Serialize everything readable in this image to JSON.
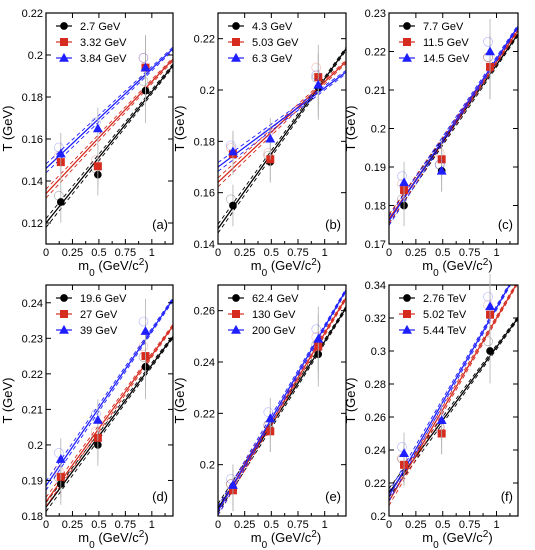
{
  "figure": {
    "xlabel": "m",
    "xlabel_sub": "0",
    "xlabel_unit": "(GeV/c",
    "xlabel_sup": "2",
    "xlabel_close": ")",
    "ylabel": "T (GeV)"
  },
  "colors": {
    "black": "#000000",
    "red": "#d62b1f",
    "blue": "#1f1fff",
    "error": "#b0b0b0"
  },
  "chart_data": [
    {
      "type": "scatter",
      "panel_label": "(a)",
      "xlim": [
        0,
        1.2
      ],
      "ylim": [
        0.11,
        0.22
      ],
      "xticks": [
        "0",
        "0.25",
        "0.5",
        "0.75",
        "1"
      ],
      "yticks": [
        "0.12",
        "0.14",
        "0.16",
        "0.18",
        "0.2",
        "0.22"
      ],
      "yvals": [
        0.12,
        0.14,
        0.16,
        0.18,
        0.2,
        0.22
      ],
      "legend_position": "top-left",
      "series": [
        {
          "name": "2.7 GeV",
          "marker": "circle",
          "color": "#000000",
          "x": [
            0.14,
            0.49,
            0.94
          ],
          "y": [
            0.13,
            0.143,
            0.183
          ],
          "line": [
            0.12,
            0.195
          ]
        },
        {
          "name": "3.32 GeV",
          "marker": "square",
          "color": "#d62b1f",
          "x": [
            0.14,
            0.49,
            0.94
          ],
          "y": [
            0.149,
            0.147,
            0.194
          ],
          "line": [
            0.134,
            0.198
          ]
        },
        {
          "name": "3.84 GeV",
          "marker": "triangle",
          "color": "#1f1fff",
          "x": [
            0.14,
            0.49,
            0.94
          ],
          "y": [
            0.153,
            0.165,
            0.194
          ],
          "line": [
            0.146,
            0.203
          ]
        }
      ]
    },
    {
      "type": "scatter",
      "panel_label": "(b)",
      "xlim": [
        0,
        1.2
      ],
      "ylim": [
        0.14,
        0.23
      ],
      "xticks": [
        "0",
        "0.25",
        "0.5",
        "0.75",
        "1"
      ],
      "yticks": [
        "0.14",
        "0.16",
        "0.18",
        "0.2",
        "0.22"
      ],
      "yvals": [
        0.14,
        0.16,
        0.18,
        0.2,
        0.22
      ],
      "legend_position": "top-left",
      "series": [
        {
          "name": "4.3 GeV",
          "marker": "circle",
          "color": "#000000",
          "x": [
            0.14,
            0.49,
            0.94
          ],
          "y": [
            0.155,
            0.172,
            0.201
          ],
          "line": [
            0.146,
            0.216
          ]
        },
        {
          "name": "5.03 GeV",
          "marker": "square",
          "color": "#d62b1f",
          "x": [
            0.14,
            0.49,
            0.94
          ],
          "y": [
            0.175,
            0.173,
            0.205
          ],
          "line": [
            0.164,
            0.211
          ]
        },
        {
          "name": "6.3 GeV",
          "marker": "triangle",
          "color": "#1f1fff",
          "x": [
            0.14,
            0.49,
            0.94
          ],
          "y": [
            0.176,
            0.181,
            0.202
          ],
          "line": [
            0.17,
            0.207
          ]
        }
      ]
    },
    {
      "type": "scatter",
      "panel_label": "(c)",
      "xlim": [
        0,
        1.2
      ],
      "ylim": [
        0.17,
        0.23
      ],
      "xticks": [
        "0",
        "0.25",
        "0.5",
        "0.75",
        "1"
      ],
      "yticks": [
        "0.17",
        "0.18",
        "0.19",
        "0.2",
        "0.21",
        "0.22",
        "0.23"
      ],
      "yvals": [
        0.17,
        0.18,
        0.19,
        0.2,
        0.21,
        0.22,
        0.23
      ],
      "legend_position": "top-left",
      "series": [
        {
          "name": "7.7 GeV",
          "marker": "circle",
          "color": "#000000",
          "x": [
            0.14,
            0.49,
            0.94
          ],
          "y": [
            0.18,
            0.189,
            0.216
          ],
          "line": [
            0.1765,
            0.2245
          ]
        },
        {
          "name": "11.5 GeV",
          "marker": "square",
          "color": "#d62b1f",
          "x": [
            0.14,
            0.49,
            0.94
          ],
          "y": [
            0.184,
            0.192,
            0.216
          ],
          "line": [
            0.1765,
            0.2255
          ]
        },
        {
          "name": "14.5 GeV",
          "marker": "triangle",
          "color": "#1f1fff",
          "x": [
            0.14,
            0.49,
            0.94
          ],
          "y": [
            0.186,
            0.189,
            0.22
          ],
          "line": [
            0.176,
            0.2265
          ]
        }
      ]
    },
    {
      "type": "scatter",
      "panel_label": "(d)",
      "xlim": [
        0,
        1.2
      ],
      "ylim": [
        0.18,
        0.245
      ],
      "xticks": [
        "0",
        "0.25",
        "0.5",
        "0.75",
        "1"
      ],
      "yticks": [
        "0.18",
        "0.19",
        "0.2",
        "0.21",
        "0.22",
        "0.23",
        "0.24"
      ],
      "yvals": [
        0.18,
        0.19,
        0.2,
        0.21,
        0.22,
        0.23,
        0.24
      ],
      "legend_position": "top-left",
      "series": [
        {
          "name": "19.6 GeV",
          "marker": "circle",
          "color": "#000000",
          "x": [
            0.14,
            0.49,
            0.94
          ],
          "y": [
            0.189,
            0.2,
            0.222
          ],
          "line": [
            0.1825,
            0.2305
          ]
        },
        {
          "name": "27 GeV",
          "marker": "square",
          "color": "#d62b1f",
          "x": [
            0.14,
            0.49,
            0.94
          ],
          "y": [
            0.191,
            0.202,
            0.225
          ],
          "line": [
            0.184,
            0.2335
          ]
        },
        {
          "name": "39 GeV",
          "marker": "triangle",
          "color": "#1f1fff",
          "x": [
            0.14,
            0.49,
            0.94
          ],
          "y": [
            0.196,
            0.207,
            0.232
          ],
          "line": [
            0.1885,
            0.241
          ]
        }
      ]
    },
    {
      "type": "scatter",
      "panel_label": "(e)",
      "xlim": [
        0,
        1.2
      ],
      "ylim": [
        0.18,
        0.27
      ],
      "xticks": [
        "0",
        "0.25",
        "0.5",
        "0.75",
        "1"
      ],
      "yticks": [
        "0.2",
        "0.22",
        "0.24",
        "0.26"
      ],
      "yvals": [
        0.2,
        0.22,
        0.24,
        0.26
      ],
      "legend_position": "top-left",
      "series": [
        {
          "name": "62.4 GeV",
          "marker": "circle",
          "color": "#000000",
          "x": [
            0.14,
            0.49,
            0.94
          ],
          "y": [
            0.19,
            0.213,
            0.243
          ],
          "line": [
            0.183,
            0.261
          ]
        },
        {
          "name": "130 GeV",
          "marker": "square",
          "color": "#d62b1f",
          "x": [
            0.14,
            0.49,
            0.94
          ],
          "y": [
            0.19,
            0.213,
            0.246
          ],
          "line": [
            0.182,
            0.265
          ]
        },
        {
          "name": "200 GeV",
          "marker": "triangle",
          "color": "#1f1fff",
          "x": [
            0.14,
            0.49,
            0.94
          ],
          "y": [
            0.192,
            0.218,
            0.249
          ],
          "line": [
            0.182,
            0.268
          ]
        }
      ]
    },
    {
      "type": "scatter",
      "panel_label": "(f)",
      "xlim": [
        0,
        1.2
      ],
      "ylim": [
        0.2,
        0.34
      ],
      "xticks": [
        "0",
        "0.25",
        "0.5",
        "0.75",
        "1"
      ],
      "yticks": [
        "0.2",
        "0.22",
        "0.24",
        "0.26",
        "0.28",
        "0.3",
        "0.32",
        "0.34"
      ],
      "yvals": [
        0.2,
        0.22,
        0.24,
        0.26,
        0.28,
        0.3,
        0.32,
        0.34
      ],
      "legend_position": "top-left",
      "series": [
        {
          "name": "2.76 TeV",
          "marker": "circle",
          "color": "#000000",
          "x": [
            0.14,
            0.49,
            0.94
          ],
          "y": [
            0.231,
            0.25,
            0.3
          ],
          "line": [
            0.214,
            0.32
          ]
        },
        {
          "name": "5.02 TeV",
          "marker": "square",
          "color": "#d62b1f",
          "x": [
            0.14,
            0.49,
            0.94
          ],
          "y": [
            0.231,
            0.25,
            0.322
          ],
          "line": [
            0.209,
            0.342
          ]
        },
        {
          "name": "5.44 TeV",
          "marker": "triangle",
          "color": "#1f1fff",
          "x": [
            0.14,
            0.49,
            0.94
          ],
          "y": [
            0.238,
            0.258,
            0.327
          ],
          "line": [
            0.212,
            0.349
          ]
        }
      ]
    }
  ]
}
